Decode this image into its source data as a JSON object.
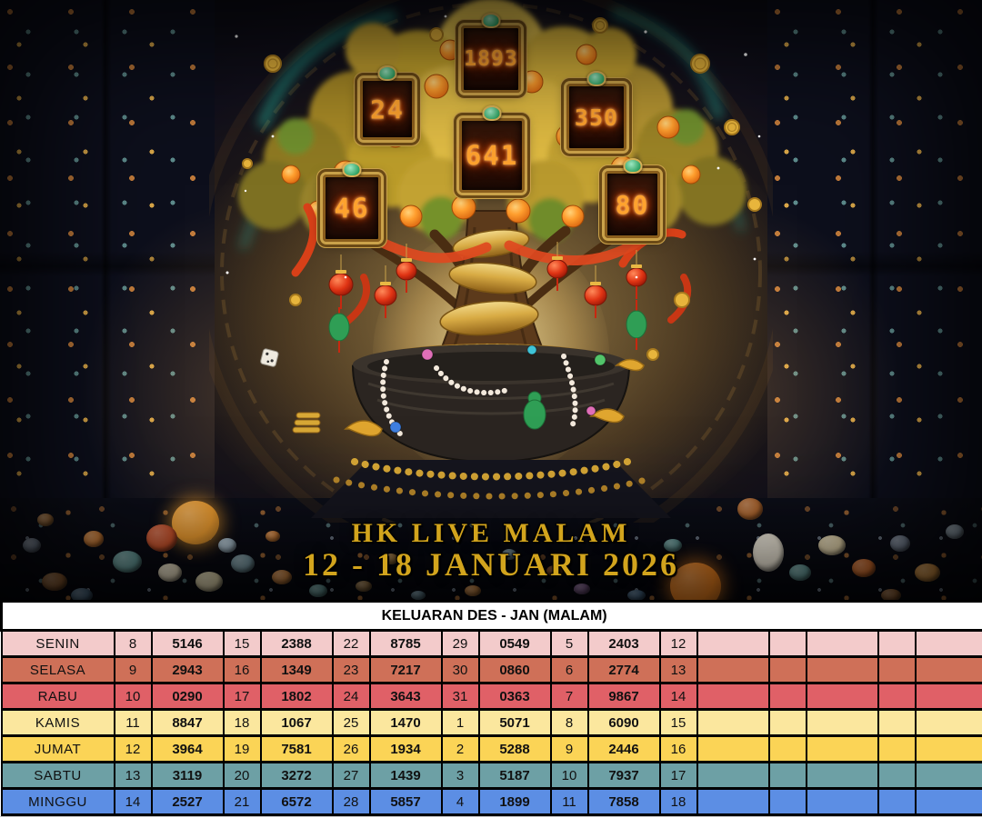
{
  "hero": {
    "title_line1": "HK LIVE MALAM",
    "title_line2": "12 - 18 JANUARI 2026",
    "led_panels": {
      "p24": "24",
      "p1893": "1893",
      "p350": "350",
      "p641": "641",
      "p46": "46",
      "p80": "80"
    }
  },
  "table": {
    "header": "KELUARAN DES - JAN (MALAM)",
    "rows": [
      {
        "day": "SENIN",
        "color": "#f3cbcb",
        "cells": [
          "8",
          "5146",
          "15",
          "2388",
          "22",
          "8785",
          "29",
          "0549",
          "5",
          "2403",
          "12",
          "",
          "",
          "",
          "",
          ""
        ]
      },
      {
        "day": "SELASA",
        "color": "#cf7058",
        "cells": [
          "9",
          "2943",
          "16",
          "1349",
          "23",
          "7217",
          "30",
          "0860",
          "6",
          "2774",
          "13",
          "",
          "",
          "",
          "",
          ""
        ]
      },
      {
        "day": "RABU",
        "color": "#e06067",
        "cells": [
          "10",
          "0290",
          "17",
          "1802",
          "24",
          "3643",
          "31",
          "0363",
          "7",
          "9867",
          "14",
          "",
          "",
          "",
          "",
          ""
        ]
      },
      {
        "day": "KAMIS",
        "color": "#fbe79e",
        "cells": [
          "11",
          "8847",
          "18",
          "1067",
          "25",
          "1470",
          "1",
          "5071",
          "8",
          "6090",
          "15",
          "",
          "",
          "",
          "",
          ""
        ]
      },
      {
        "day": "JUMAT",
        "color": "#fbd456",
        "cells": [
          "12",
          "3964",
          "19",
          "7581",
          "26",
          "1934",
          "2",
          "5288",
          "9",
          "2446",
          "16",
          "",
          "",
          "",
          "",
          ""
        ]
      },
      {
        "day": "SABTU",
        "color": "#6da0a5",
        "cells": [
          "13",
          "3119",
          "20",
          "3272",
          "27",
          "1439",
          "3",
          "5187",
          "10",
          "7937",
          "17",
          "",
          "",
          "",
          "",
          ""
        ]
      },
      {
        "day": "MINGGU",
        "color": "#5c8ee4",
        "cells": [
          "14",
          "2527",
          "21",
          "6572",
          "28",
          "5857",
          "4",
          "1899",
          "11",
          "7858",
          "18",
          "",
          "",
          "",
          "",
          ""
        ]
      }
    ]
  }
}
